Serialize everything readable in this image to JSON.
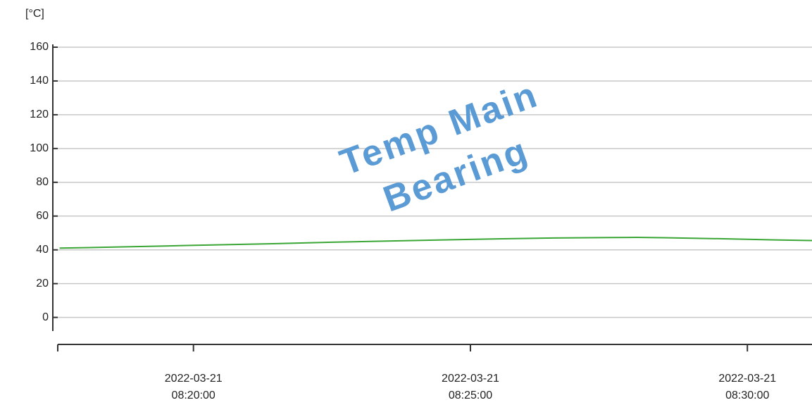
{
  "chart_data": {
    "type": "line",
    "y_unit": "[°C]",
    "watermark": [
      "Temp Main",
      "Bearing"
    ],
    "ylim": [
      -16,
      160
    ],
    "yticks": [
      0,
      20,
      40,
      60,
      80,
      100,
      120,
      140,
      160
    ],
    "xlim": [
      "2022-03-21 08:17:33",
      "2022-03-21 08:31:10"
    ],
    "xticks": [
      {
        "value": "2022-03-21 08:20:00",
        "label": "2022-03-21 08:20:00"
      },
      {
        "value": "2022-03-21 08:25:00",
        "label": "2022-03-21 08:25:00"
      },
      {
        "value": "2022-03-21 08:30:00",
        "label": "2022-03-21 08:30:00"
      }
    ],
    "grid": true,
    "x": [
      "2022-03-21 08:17:35",
      "2022-03-21 08:18:30",
      "2022-03-21 08:19:30",
      "2022-03-21 08:20:30",
      "2022-03-21 08:21:30",
      "2022-03-21 08:22:30",
      "2022-03-21 08:23:30",
      "2022-03-21 08:24:30",
      "2022-03-21 08:25:30",
      "2022-03-21 08:26:30",
      "2022-03-21 08:27:30",
      "2022-03-21 08:28:00",
      "2022-03-21 08:28:30",
      "2022-03-21 08:29:30",
      "2022-03-21 08:30:30",
      "2022-03-21 08:31:10"
    ],
    "series": [
      {
        "color": "#3aa635",
        "values": [
          41.0,
          41.6,
          42.3,
          43.0,
          43.7,
          44.5,
          45.2,
          45.9,
          46.5,
          47.0,
          47.3,
          47.4,
          47.2,
          46.6,
          45.9,
          45.5
        ]
      }
    ]
  }
}
